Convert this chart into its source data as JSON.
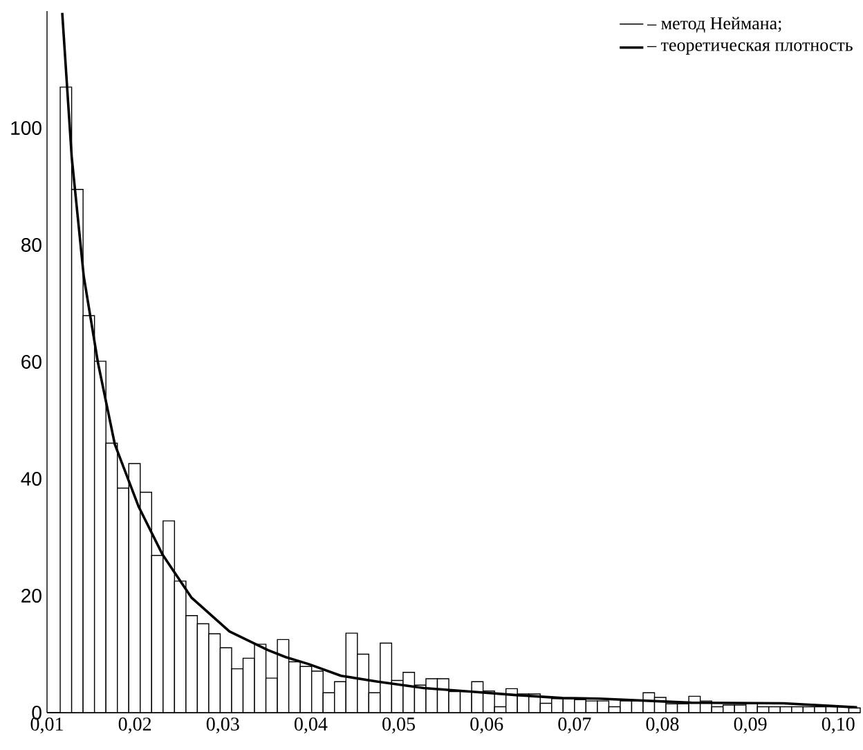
{
  "chart_data": {
    "type": "histogram",
    "bins": [
      0.0115,
      0.0128,
      0.0141,
      0.0154,
      0.0167,
      0.018,
      0.0193,
      0.0206,
      0.0219,
      0.0232,
      0.0245,
      0.0258,
      0.0271,
      0.0284,
      0.0297,
      0.031,
      0.0323,
      0.0336,
      0.0349,
      0.0362,
      0.0375,
      0.0388,
      0.0401,
      0.0414,
      0.0427,
      0.044,
      0.0453,
      0.0466,
      0.0479,
      0.0492,
      0.0505,
      0.0518,
      0.0531,
      0.0544,
      0.0557,
      0.057,
      0.0583,
      0.0596,
      0.0609,
      0.0622,
      0.0635,
      0.0648,
      0.0661,
      0.0674,
      0.0687,
      0.07,
      0.0713,
      0.0726,
      0.0739,
      0.0752,
      0.0765,
      0.0778,
      0.0791,
      0.0804,
      0.0817,
      0.083,
      0.0843,
      0.0856,
      0.0869,
      0.0882,
      0.0895,
      0.0908,
      0.0921,
      0.0934,
      0.0947,
      0.096,
      0.0973,
      0.0986,
      0.0999,
      0.1012,
      0.1025
    ],
    "series": [
      {
        "name": "– метод Неймана;",
        "color": "#000000",
        "values": [
          107,
          89.5,
          67.9,
          60.1,
          46.1,
          38.4,
          42.6,
          37.7,
          26.9,
          32.8,
          22.5,
          16.6,
          15.2,
          13.5,
          11.1,
          7.5,
          9.3,
          11.7,
          5.9,
          12.5,
          8.7,
          7.9,
          7.1,
          3.4,
          5.3,
          13.6,
          10.0,
          3.4,
          11.9,
          5.5,
          6.9,
          4.7,
          5.8,
          5.8,
          3.6,
          3.6,
          5.3,
          3.7,
          1.0,
          4.1,
          3.2,
          3.2,
          1.6,
          2.4,
          2.4,
          2.2,
          2.0,
          2.0,
          1.0,
          2.0,
          2.0,
          3.4,
          2.6,
          1.5,
          1.5,
          2.8,
          2.0,
          1.0,
          1.3,
          1.3,
          1.5,
          1.0,
          1.0,
          1.0,
          1.0,
          1.0,
          1.0,
          1.0,
          1.0,
          0.8
        ]
      },
      {
        "name": "– теоретическая плотность",
        "type": "line",
        "color": "#000000",
        "x": [
          0.01173,
          0.01281,
          0.01418,
          0.0158,
          0.01771,
          0.02043,
          0.02315,
          0.02642,
          0.03075,
          0.03513,
          0.03715,
          0.03977,
          0.04344,
          0.04763,
          0.05288,
          0.05811,
          0.06335,
          0.0686,
          0.07274,
          0.08327,
          0.09376,
          0.10214
        ],
        "values": [
          119.7,
          95,
          74.6,
          59.8,
          45.9,
          35.2,
          27,
          19.7,
          13.9,
          10.7,
          9.5,
          8.3,
          6.3,
          5.3,
          4.2,
          3.6,
          3.0,
          2.5,
          2.4,
          1.7,
          1.6,
          0.9
        ]
      }
    ],
    "xlim": [
      0.01,
      0.1025
    ],
    "ylim": [
      0,
      120
    ],
    "xticks": [
      {
        "value": 0.01,
        "label": "0,01"
      },
      {
        "value": 0.02,
        "label": "0,02"
      },
      {
        "value": 0.03,
        "label": "0,03"
      },
      {
        "value": 0.04,
        "label": "0,04"
      },
      {
        "value": 0.05,
        "label": "0,05"
      },
      {
        "value": 0.06,
        "label": "0,06"
      },
      {
        "value": 0.07,
        "label": "0,07"
      },
      {
        "value": 0.08,
        "label": "0,08"
      },
      {
        "value": 0.09,
        "label": "0,09"
      },
      {
        "value": 0.1,
        "label": "0,10"
      }
    ],
    "yticks": [
      0,
      20,
      40,
      60,
      80,
      100
    ],
    "legend": "top right"
  }
}
